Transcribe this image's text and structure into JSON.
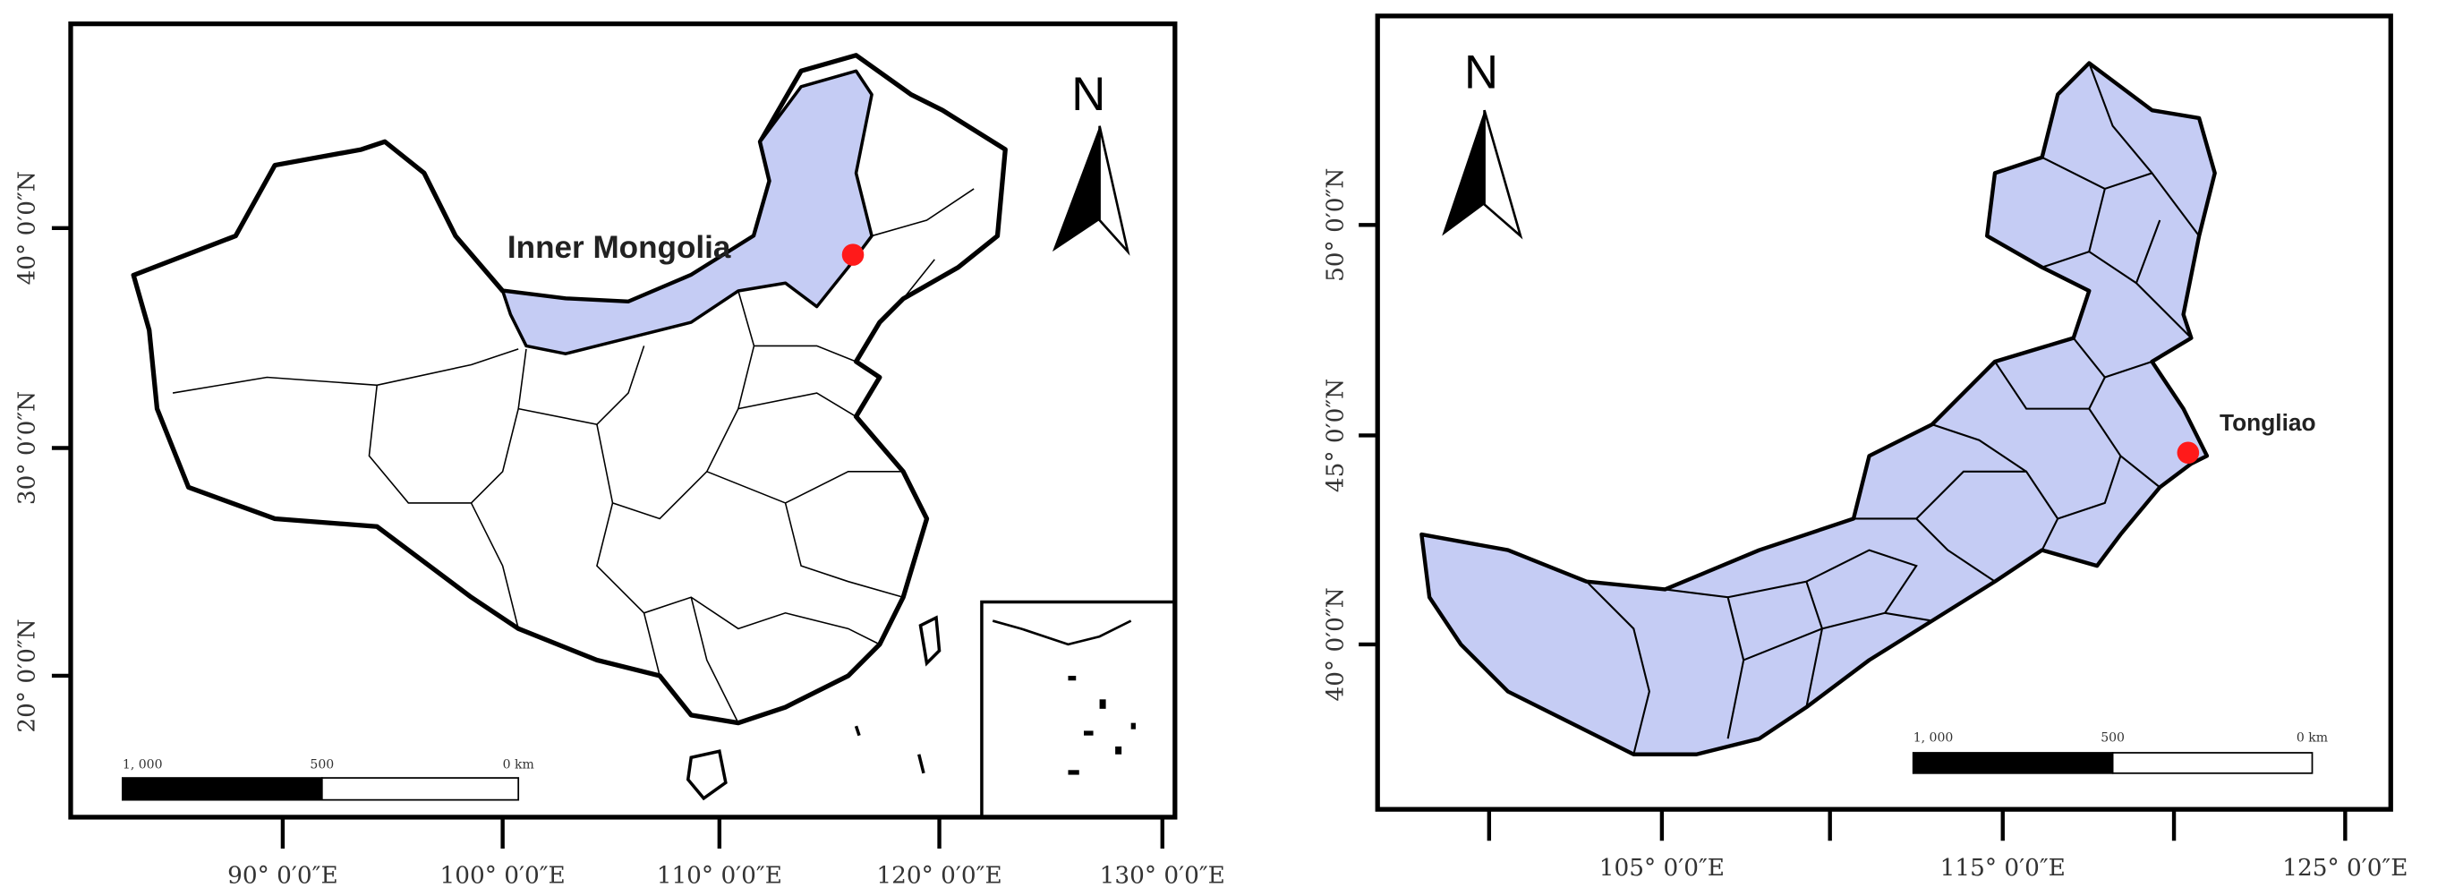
{
  "maps": [
    {
      "place_label": "Inner Mongolia",
      "north": "N",
      "scale_bar": [
        "1, 000",
        "500",
        "0 km"
      ],
      "x_ticks": [
        "90° 0′0″E",
        "100° 0′0″E",
        "110° 0′0″E",
        "120° 0′0″E",
        "130° 0′0″E"
      ],
      "y_ticks": [
        "40° 0′0″N",
        "30° 0′0″N",
        "20° 0′0″N"
      ]
    },
    {
      "place_label": "Tongliao",
      "north": "N",
      "scale_bar": [
        "1, 000",
        "500",
        "0 km"
      ],
      "x_ticks": [
        "105° 0′0″E",
        "115° 0′0″E",
        "125° 0′0″E"
      ],
      "y_ticks": [
        "50° 0′0″N",
        "45° 0′0″N",
        "40° 0′0″N"
      ]
    }
  ]
}
